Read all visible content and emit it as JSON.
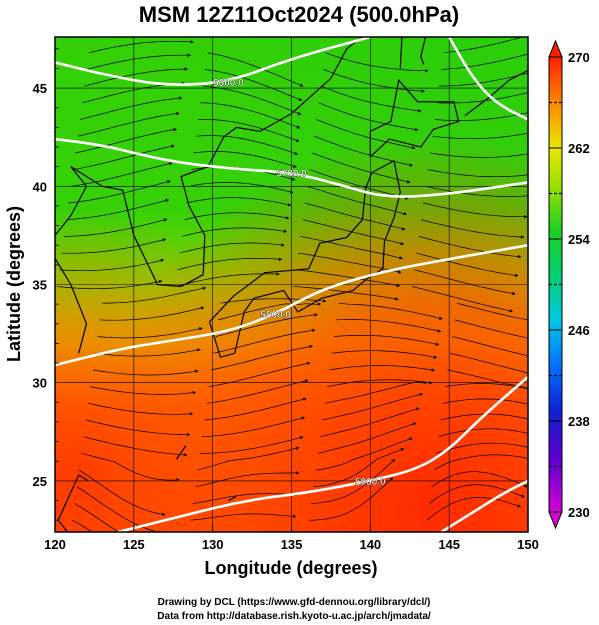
{
  "chart_data": {
    "type": "heatmap",
    "title": "MSM 12Z11Oct2024 (500.0hPa)",
    "xlabel": "Longitude (degrees)",
    "ylabel": "Latitude  (degrees)",
    "xlim": [
      120,
      150
    ],
    "ylim": [
      22.4,
      47.6
    ],
    "x_ticks": [
      120,
      125,
      130,
      135,
      140,
      145,
      150
    ],
    "y_ticks": [
      25,
      30,
      35,
      40,
      45
    ],
    "grid": true,
    "colorbar": {
      "min": 230,
      "max": 270,
      "ticks": [
        230,
        238,
        246,
        254,
        262,
        270
      ],
      "dashed_levels": [
        234,
        242,
        250,
        258,
        266
      ],
      "extend": "both"
    },
    "temperature_field_K": {
      "note_levels": "fill colour from the colorbar",
      "north_west": 255,
      "north_east": 256,
      "center": 253,
      "south_west": 264,
      "south_east": 268
    },
    "height_contours": [
      {
        "label": "5600.0",
        "lon": [
          120,
          123,
          127,
          131,
          135,
          140
        ],
        "lat": [
          46.3,
          45.7,
          45.1,
          45.3,
          46.5,
          47.6
        ]
      },
      {
        "label": "5700.0",
        "lon": [
          120,
          123,
          127,
          131,
          135,
          138,
          141,
          145,
          150
        ],
        "lat": [
          42.4,
          42.1,
          41.3,
          40.9,
          40.7,
          40.1,
          39.4,
          39.6,
          40.2
        ]
      },
      {
        "label": "5800.0",
        "lon": [
          120,
          124,
          127,
          131,
          134,
          137,
          141,
          145,
          150
        ],
        "lat": [
          30.9,
          31.7,
          32.1,
          32.6,
          33.5,
          34.8,
          35.7,
          36.3,
          37.0
        ]
      },
      {
        "label": "5900.0",
        "lon": [
          124,
          128,
          132,
          136,
          140,
          143,
          145,
          147,
          150
        ],
        "lat": [
          22.4,
          23.2,
          24.0,
          24.4,
          25.0,
          25.6,
          26.6,
          28.2,
          30.3
        ]
      },
      {
        "label": "",
        "lon": [
          145,
          146.5,
          148,
          150
        ],
        "lat": [
          47.6,
          45.5,
          44.2,
          43.4
        ]
      },
      {
        "label": "",
        "lon": [
          144.5,
          146.5,
          148.5,
          150
        ],
        "lat": [
          22.4,
          23.4,
          24.4,
          25.0
        ]
      }
    ]
  },
  "credits": {
    "line1": "Drawing by DCL (https://www.gfd-dennou.org/library/dcl/)",
    "line2": "Data from http://database.rish.kyoto-u.ac.jp/arch/jmadata/"
  },
  "colors": {
    "frame": "#000000",
    "contour": "#ffffff",
    "stream": "#000000"
  }
}
